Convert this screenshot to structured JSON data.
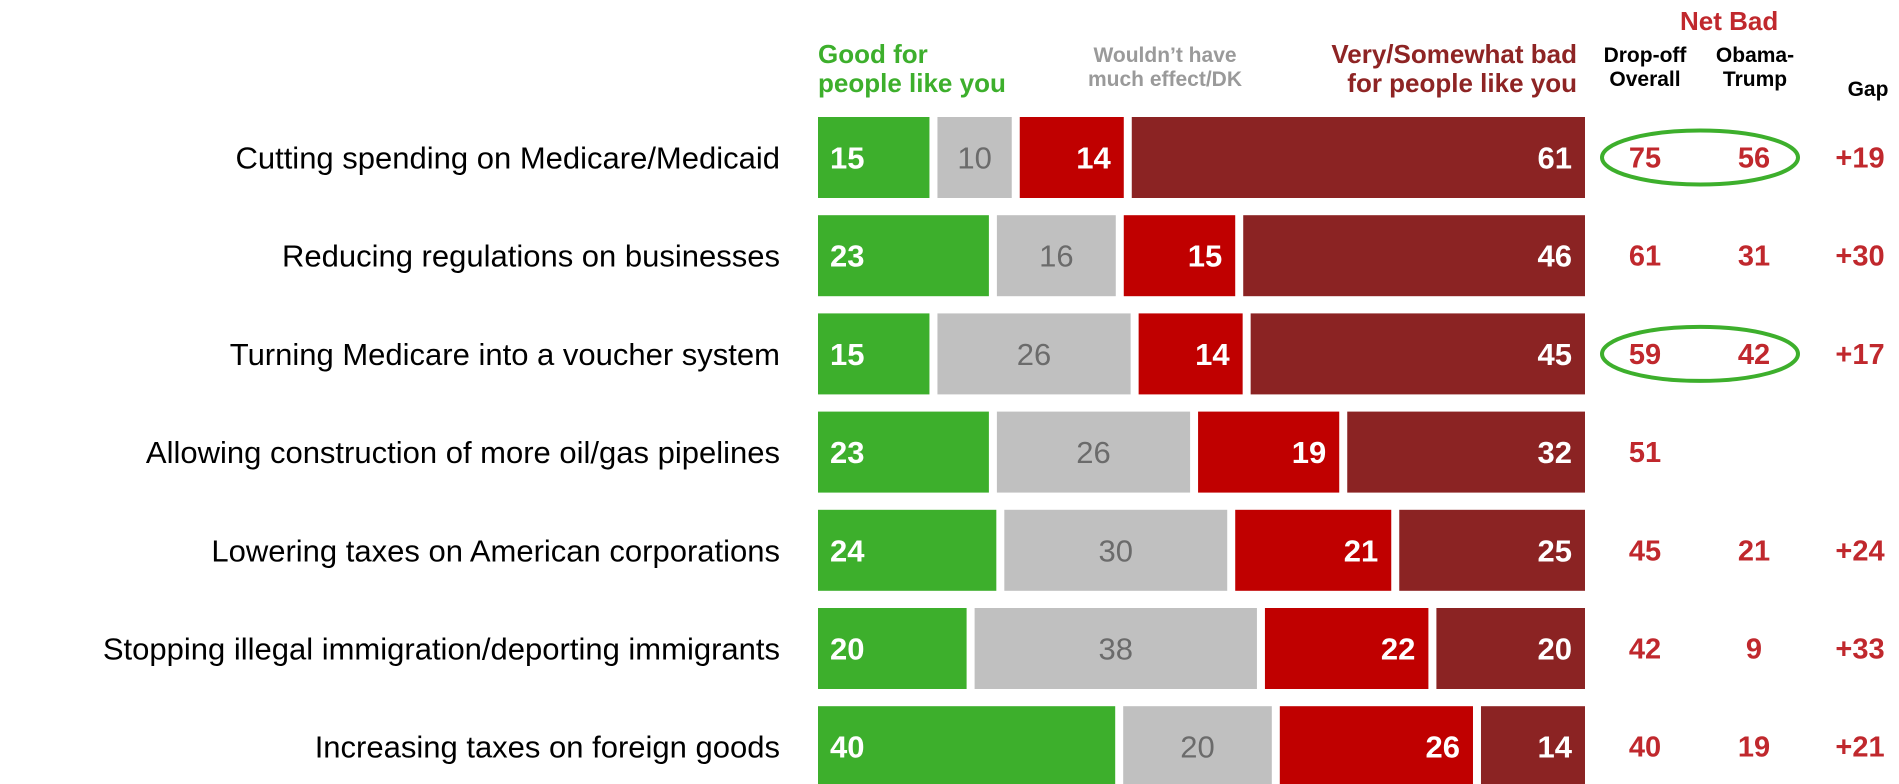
{
  "headers": {
    "good": "Good for people like you",
    "neutral": "Wouldn’t have much effect/DK",
    "bad": "Very/Somewhat bad for people like you",
    "net_bad": "Net Bad",
    "dropoff": "Drop-off Overall",
    "obama": "Obama-Trump",
    "gap": "Gap"
  },
  "colors": {
    "good": "#3daf2c",
    "neutral": "#c0c0c0",
    "somewhat_bad": "#c00000",
    "very_bad": "#8b2323",
    "net_text": "#c0282d",
    "circle": "#3daf2c",
    "neutral_text": "#6b6b6b"
  },
  "chart_data": {
    "type": "bar",
    "orientation": "horizontal-stacked",
    "categories": [
      "Cutting spending on Medicare/Medicaid",
      "Reducing regulations on businesses",
      "Turning Medicare into a voucher system",
      "Allowing construction of more oil/gas pipelines",
      "Lowering taxes on American corporations",
      "Stopping illegal immigration/deporting immigrants",
      "Increasing taxes on foreign goods"
    ],
    "series": [
      {
        "name": "Good for people like you",
        "values": [
          15,
          23,
          15,
          23,
          24,
          20,
          40
        ]
      },
      {
        "name": "Wouldn’t have much effect/DK",
        "values": [
          10,
          16,
          26,
          26,
          30,
          38,
          20
        ]
      },
      {
        "name": "Very/Somewhat bad for people like you",
        "values": [
          14,
          15,
          14,
          19,
          21,
          22,
          26
        ]
      },
      {
        "name": "Very/Somewhat bad for people like you",
        "values": [
          61,
          46,
          45,
          32,
          25,
          20,
          14
        ]
      }
    ],
    "net_bad": {
      "dropoff_overall": [
        "75",
        "61",
        "59",
        "51",
        "45",
        "42",
        "40"
      ],
      "obama_trump": [
        "56",
        "31",
        "42",
        "",
        "21",
        "9",
        "19"
      ],
      "gap": [
        "+19",
        "+30",
        "+17",
        "",
        "+24",
        "+33",
        "+21"
      ]
    },
    "circled_rows": [
      0,
      2
    ]
  }
}
